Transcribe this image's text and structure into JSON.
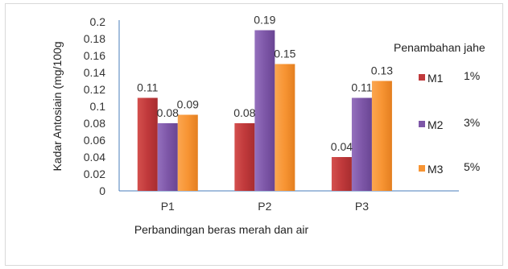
{
  "chart_data": {
    "type": "bar",
    "categories": [
      "P1",
      "P2",
      "P3"
    ],
    "series": [
      {
        "name": "M1",
        "values": [
          0.11,
          0.08,
          0.04
        ],
        "labels": [
          "0.11",
          "0.08",
          "0.04"
        ],
        "color": "#c0393b",
        "pct": "1%"
      },
      {
        "name": "M2",
        "values": [
          0.08,
          0.19,
          0.11
        ],
        "labels": [
          "0.08",
          "0.19",
          "0.11"
        ],
        "color": "#7e57a8",
        "pct": "3%"
      },
      {
        "name": "M3",
        "values": [
          0.09,
          0.15,
          0.13
        ],
        "labels": [
          "0.09",
          "0.15",
          "0.13"
        ],
        "color": "#f79433",
        "pct": "5%"
      }
    ],
    "xlabel": "Perbandingan beras merah dan air",
    "ylabel": "Kadar Antosiain (mg/100g",
    "ylim": [
      0,
      0.2
    ],
    "yticks": [
      "0",
      "0.02",
      "0.04",
      "0.06",
      "0.08",
      "0.1",
      "0.12",
      "0.14",
      "0.16",
      "0.18",
      "0.2"
    ],
    "legend_title": "Penambahan jahe",
    "legend_placement": "right",
    "grid": false
  }
}
